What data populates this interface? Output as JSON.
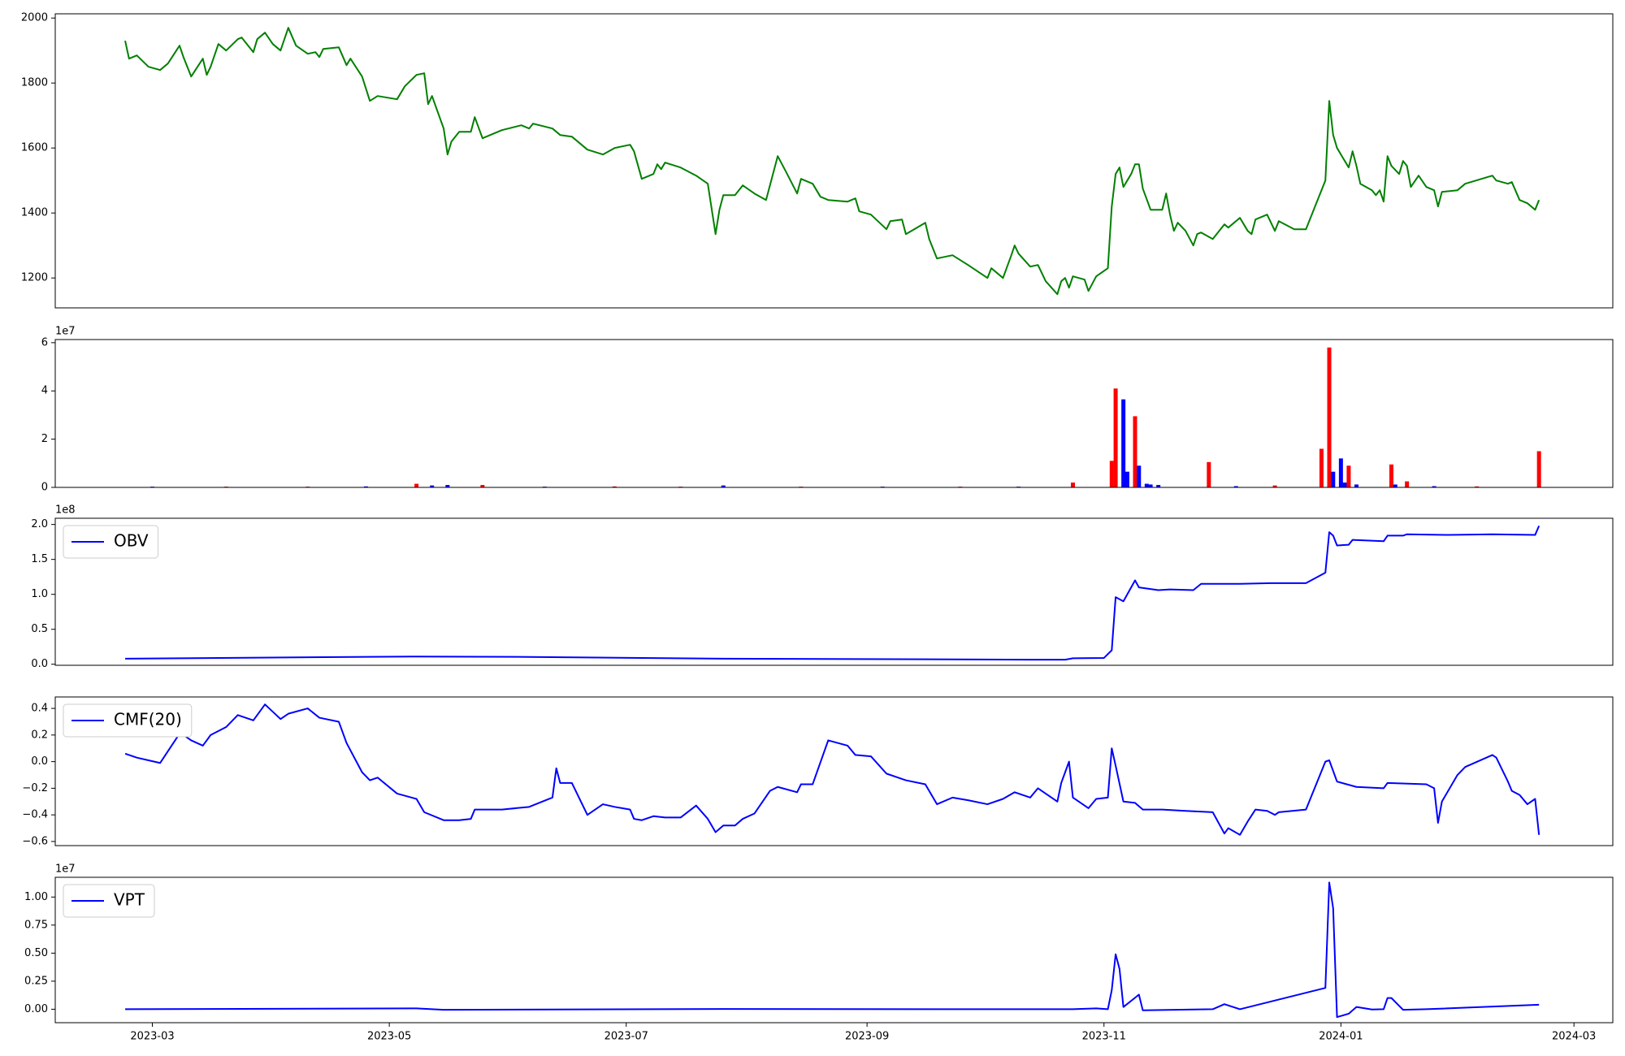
{
  "chart_data": [
    {
      "type": "line",
      "color": "#008000",
      "xlim": [
        "2023-02-04",
        "2024-03-11"
      ],
      "ylim": [
        1108,
        2013
      ],
      "yticks": [
        1200,
        1400,
        1600,
        1800,
        2000
      ],
      "x": [
        "2023-02-22",
        "2023-02-23",
        "2023-02-25",
        "2023-02-28",
        "2023-03-03",
        "2023-03-05",
        "2023-03-08",
        "2023-03-09",
        "2023-03-11",
        "2023-03-14",
        "2023-03-15",
        "2023-03-16",
        "2023-03-18",
        "2023-03-20",
        "2023-03-23",
        "2023-03-24",
        "2023-03-27",
        "2023-03-28",
        "2023-03-30",
        "2023-04-01",
        "2023-04-03",
        "2023-04-05",
        "2023-04-07",
        "2023-04-10",
        "2023-04-12",
        "2023-04-13",
        "2023-04-14",
        "2023-04-18",
        "2023-04-20",
        "2023-04-21",
        "2023-04-24",
        "2023-04-26",
        "2023-04-28",
        "2023-05-03",
        "2023-05-05",
        "2023-05-08",
        "2023-05-10",
        "2023-05-11",
        "2023-05-12",
        "2023-05-15",
        "2023-05-16",
        "2023-05-17",
        "2023-05-19",
        "2023-05-22",
        "2023-05-23",
        "2023-05-25",
        "2023-05-30",
        "2023-06-04",
        "2023-06-06",
        "2023-06-07",
        "2023-06-12",
        "2023-06-14",
        "2023-06-17",
        "2023-06-21",
        "2023-06-25",
        "2023-06-28",
        "2023-07-02",
        "2023-07-03",
        "2023-07-05",
        "2023-07-08",
        "2023-07-09",
        "2023-07-10",
        "2023-07-11",
        "2023-07-15",
        "2023-07-19",
        "2023-07-22",
        "2023-07-24",
        "2023-07-25",
        "2023-07-26",
        "2023-07-29",
        "2023-07-31",
        "2023-08-03",
        "2023-08-06",
        "2023-08-07",
        "2023-08-09",
        "2023-08-11",
        "2023-08-14",
        "2023-08-15",
        "2023-08-18",
        "2023-08-20",
        "2023-08-22",
        "2023-08-27",
        "2023-08-29",
        "2023-08-30",
        "2023-09-02",
        "2023-09-06",
        "2023-09-07",
        "2023-09-10",
        "2023-09-11",
        "2023-09-16",
        "2023-09-17",
        "2023-09-19",
        "2023-09-23",
        "2023-09-27",
        "2023-10-02",
        "2023-10-03",
        "2023-10-06",
        "2023-10-08",
        "2023-10-09",
        "2023-10-10",
        "2023-10-13",
        "2023-10-15",
        "2023-10-17",
        "2023-10-20",
        "2023-10-21",
        "2023-10-22",
        "2023-10-23",
        "2023-10-24",
        "2023-10-27",
        "2023-10-28",
        "2023-10-30",
        "2023-11-02",
        "2023-11-03",
        "2023-11-04",
        "2023-11-05",
        "2023-11-06",
        "2023-11-08",
        "2023-11-09",
        "2023-11-10",
        "2023-11-11",
        "2023-11-13",
        "2023-11-16",
        "2023-11-17",
        "2023-11-18",
        "2023-11-19",
        "2023-11-20",
        "2023-11-22",
        "2023-11-24",
        "2023-11-25",
        "2023-11-26",
        "2023-11-29",
        "2023-12-02",
        "2023-12-03",
        "2023-12-06",
        "2023-12-08",
        "2023-12-09",
        "2023-12-10",
        "2023-12-13",
        "2023-12-15",
        "2023-12-16",
        "2023-12-20",
        "2023-12-23",
        "2023-12-28",
        "2023-12-29",
        "2023-12-30",
        "2023-12-31",
        "2024-01-03",
        "2024-01-04",
        "2024-01-05",
        "2024-01-06",
        "2024-01-09",
        "2024-01-10",
        "2024-01-11",
        "2024-01-12",
        "2024-01-13",
        "2024-01-14",
        "2024-01-16",
        "2024-01-17",
        "2024-01-18",
        "2024-01-19",
        "2024-01-21",
        "2024-01-23",
        "2024-01-25",
        "2024-01-26",
        "2024-01-27",
        "2024-01-31",
        "2024-02-02",
        "2024-02-09",
        "2024-02-10",
        "2024-02-13",
        "2024-02-14",
        "2024-02-16",
        "2024-02-18",
        "2024-02-20",
        "2024-02-21"
      ],
      "values": [
        1930,
        1875,
        1885,
        1850,
        1840,
        1860,
        1915,
        1880,
        1820,
        1875,
        1825,
        1850,
        1920,
        1900,
        1935,
        1940,
        1895,
        1935,
        1955,
        1920,
        1900,
        1970,
        1915,
        1890,
        1895,
        1880,
        1905,
        1910,
        1855,
        1875,
        1820,
        1745,
        1760,
        1750,
        1790,
        1825,
        1830,
        1735,
        1760,
        1660,
        1580,
        1620,
        1650,
        1650,
        1695,
        1630,
        1655,
        1670,
        1660,
        1675,
        1660,
        1640,
        1635,
        1595,
        1580,
        1600,
        1610,
        1590,
        1505,
        1520,
        1550,
        1535,
        1555,
        1540,
        1515,
        1490,
        1335,
        1410,
        1455,
        1455,
        1485,
        1460,
        1440,
        1485,
        1575,
        1530,
        1460,
        1505,
        1490,
        1450,
        1440,
        1435,
        1445,
        1405,
        1395,
        1350,
        1375,
        1380,
        1335,
        1370,
        1320,
        1260,
        1270,
        1240,
        1200,
        1230,
        1200,
        1265,
        1300,
        1275,
        1235,
        1240,
        1190,
        1150,
        1190,
        1200,
        1170,
        1205,
        1195,
        1160,
        1205,
        1230,
        1420,
        1520,
        1540,
        1480,
        1520,
        1550,
        1550,
        1475,
        1410,
        1410,
        1460,
        1395,
        1345,
        1370,
        1345,
        1300,
        1335,
        1340,
        1320,
        1365,
        1355,
        1385,
        1345,
        1335,
        1380,
        1395,
        1345,
        1375,
        1350,
        1350,
        1500,
        1745,
        1640,
        1600,
        1540,
        1590,
        1545,
        1490,
        1470,
        1455,
        1470,
        1435,
        1575,
        1545,
        1520,
        1560,
        1545,
        1480,
        1515,
        1480,
        1470,
        1420,
        1465,
        1470,
        1490,
        1515,
        1500,
        1490,
        1495,
        1440,
        1430,
        1410,
        1440
      ]
    },
    {
      "type": "bar",
      "y_offset_label": "1e7",
      "xlim": [
        "2023-02-04",
        "2024-03-11"
      ],
      "ylim": [
        0,
        61300000
      ],
      "yticks": [
        0,
        {
          "value": 20000000,
          "label": "2"
        },
        {
          "value": 40000000,
          "label": "4"
        },
        {
          "value": 60000000,
          "label": "6"
        }
      ],
      "x": [
        "2023-03-01",
        "2023-03-20",
        "2023-04-10",
        "2023-04-25",
        "2023-05-08",
        "2023-05-12",
        "2023-05-16",
        "2023-05-25",
        "2023-06-10",
        "2023-06-28",
        "2023-07-15",
        "2023-07-26",
        "2023-08-15",
        "2023-09-05",
        "2023-09-25",
        "2023-10-10",
        "2023-10-24",
        "2023-11-03",
        "2023-11-04",
        "2023-11-06",
        "2023-11-07",
        "2023-11-09",
        "2023-11-10",
        "2023-11-12",
        "2023-11-13",
        "2023-11-15",
        "2023-11-28",
        "2023-12-05",
        "2023-12-15",
        "2023-12-27",
        "2023-12-29",
        "2023-12-30",
        "2024-01-01",
        "2024-01-02",
        "2024-01-03",
        "2024-01-05",
        "2024-01-14",
        "2024-01-15",
        "2024-01-18",
        "2024-01-25",
        "2024-02-05",
        "2024-02-21"
      ],
      "values": [
        300000,
        300000,
        300000,
        400000,
        1500000,
        800000,
        1000000,
        1000000,
        300000,
        400000,
        300000,
        800000,
        300000,
        300000,
        300000,
        300000,
        2000000,
        11000000,
        41000000,
        36500000,
        6500000,
        29500000,
        9000000,
        1500000,
        1200000,
        1000000,
        10500000,
        500000,
        800000,
        16000000,
        58000000,
        6500000,
        12000000,
        2000000,
        9000000,
        1200000,
        9500000,
        1200000,
        2500000,
        500000,
        400000,
        15000000
      ],
      "colors": [
        "#0000ff",
        "#ff0000",
        "#ff0000",
        "#0000ff",
        "#ff0000",
        "#0000ff",
        "#0000ff",
        "#ff0000",
        "#0000ff",
        "#ff0000",
        "#ff0000",
        "#0000ff",
        "#ff0000",
        "#0000ff",
        "#ff0000",
        "#0000ff",
        "#ff0000",
        "#ff0000",
        "#ff0000",
        "#0000ff",
        "#0000ff",
        "#ff0000",
        "#0000ff",
        "#0000ff",
        "#0000ff",
        "#0000ff",
        "#ff0000",
        "#0000ff",
        "#ff0000",
        "#ff0000",
        "#ff0000",
        "#0000ff",
        "#0000ff",
        "#0000ff",
        "#ff0000",
        "#0000ff",
        "#ff0000",
        "#0000ff",
        "#ff0000",
        "#0000ff",
        "#ff0000",
        "#ff0000"
      ]
    },
    {
      "type": "line",
      "y_offset_label": "1e8",
      "legend": "upper left",
      "xlim": [
        "2023-02-04",
        "2024-03-11"
      ],
      "ylim": [
        -1500000,
        208900000
      ],
      "yticks": [
        {
          "value": 0,
          "label": "0.0"
        },
        {
          "value": 50000000,
          "label": "0.5"
        },
        {
          "value": 100000000,
          "label": "1.0"
        },
        {
          "value": 150000000,
          "label": "1.5"
        },
        {
          "value": 200000000,
          "label": "2.0"
        }
      ],
      "x": [
        "2023-02-22",
        "2023-05-07",
        "2023-06-03",
        "2023-07-26",
        "2023-10-15",
        "2023-10-22",
        "2023-10-24",
        "2023-11-01",
        "2023-11-03",
        "2023-11-04",
        "2023-11-06",
        "2023-11-09",
        "2023-11-10",
        "2023-11-15",
        "2023-11-18",
        "2023-11-24",
        "2023-11-26",
        "2023-12-06",
        "2023-12-14",
        "2023-12-23",
        "2023-12-28",
        "2023-12-29",
        "2023-12-30",
        "2023-12-31",
        "2024-01-03",
        "2024-01-04",
        "2024-01-12",
        "2024-01-13",
        "2024-01-17",
        "2024-01-18",
        "2024-01-29",
        "2024-02-09",
        "2024-02-20",
        "2024-02-21"
      ],
      "series": [
        {
          "name": "OBV",
          "color": "#0000ff",
          "values": [
            8000000,
            11000000,
            10500000,
            8000000,
            6500000,
            6500000,
            8500000,
            9000000,
            20000000,
            96000000,
            90000000,
            120000000,
            110000000,
            106000000,
            107000000,
            106000000,
            115000000,
            115000000,
            116000000,
            116000000,
            131000000,
            189000000,
            184000000,
            170000000,
            171000000,
            178000000,
            176000000,
            184000000,
            184000000,
            186000000,
            185000000,
            186000000,
            185000000,
            198000000
          ]
        }
      ]
    },
    {
      "type": "line",
      "legend": "upper left",
      "xlim": [
        "2023-02-04",
        "2024-03-11"
      ],
      "ylim": [
        -0.631,
        0.486
      ],
      "yticks": [
        {
          "value": -0.6,
          "label": "−0.6"
        },
        {
          "value": -0.4,
          "label": "−0.4"
        },
        {
          "value": -0.2,
          "label": "−0.2"
        },
        {
          "value": 0,
          "label": "0.0"
        },
        0.2,
        0.4
      ],
      "x": [
        "2023-02-22",
        "2023-02-25",
        "2023-02-28",
        "2023-03-03",
        "2023-03-08",
        "2023-03-09",
        "2023-03-11",
        "2023-03-14",
        "2023-03-16",
        "2023-03-20",
        "2023-03-23",
        "2023-03-27",
        "2023-03-30",
        "2023-04-03",
        "2023-04-05",
        "2023-04-10",
        "2023-04-13",
        "2023-04-18",
        "2023-04-20",
        "2023-04-24",
        "2023-04-26",
        "2023-04-28",
        "2023-05-03",
        "2023-05-08",
        "2023-05-10",
        "2023-05-15",
        "2023-05-19",
        "2023-05-22",
        "2023-05-23",
        "2023-05-30",
        "2023-06-06",
        "2023-06-12",
        "2023-06-13",
        "2023-06-14",
        "2023-06-17",
        "2023-06-21",
        "2023-06-25",
        "2023-06-28",
        "2023-07-02",
        "2023-07-03",
        "2023-07-05",
        "2023-07-08",
        "2023-07-11",
        "2023-07-15",
        "2023-07-19",
        "2023-07-22",
        "2023-07-24",
        "2023-07-26",
        "2023-07-29",
        "2023-07-31",
        "2023-08-03",
        "2023-08-07",
        "2023-08-09",
        "2023-08-14",
        "2023-08-15",
        "2023-08-18",
        "2023-08-22",
        "2023-08-27",
        "2023-08-29",
        "2023-09-02",
        "2023-09-06",
        "2023-09-10",
        "2023-09-11",
        "2023-09-16",
        "2023-09-19",
        "2023-09-23",
        "2023-09-27",
        "2023-10-02",
        "2023-10-06",
        "2023-10-09",
        "2023-10-13",
        "2023-10-15",
        "2023-10-20",
        "2023-10-21",
        "2023-10-22",
        "2023-10-23",
        "2023-10-24",
        "2023-10-28",
        "2023-10-30",
        "2023-11-02",
        "2023-11-03",
        "2023-11-04",
        "2023-11-06",
        "2023-11-09",
        "2023-11-11",
        "2023-11-16",
        "2023-11-22",
        "2023-11-29",
        "2023-12-02",
        "2023-12-03",
        "2023-12-06",
        "2023-12-08",
        "2023-12-10",
        "2023-12-13",
        "2023-12-15",
        "2023-12-16",
        "2023-12-23",
        "2023-12-28",
        "2023-12-29",
        "2023-12-31",
        "2024-01-05",
        "2024-01-12",
        "2024-01-13",
        "2024-01-23",
        "2024-01-25",
        "2024-01-26",
        "2024-01-27",
        "2024-01-31",
        "2024-02-02",
        "2024-02-09",
        "2024-02-10",
        "2024-02-13",
        "2024-02-14",
        "2024-02-16",
        "2024-02-18",
        "2024-02-20",
        "2024-02-21"
      ],
      "series": [
        {
          "name": "CMF(20)",
          "color": "#0000ff",
          "values": [
            0.06,
            0.03,
            0.01,
            -0.01,
            0.21,
            0.2,
            0.16,
            0.12,
            0.2,
            0.26,
            0.35,
            0.31,
            0.43,
            0.32,
            0.36,
            0.4,
            0.33,
            0.3,
            0.14,
            -0.08,
            -0.14,
            -0.12,
            -0.24,
            -0.28,
            -0.38,
            -0.44,
            -0.44,
            -0.43,
            -0.36,
            -0.36,
            -0.34,
            -0.27,
            -0.05,
            -0.16,
            -0.16,
            -0.4,
            -0.32,
            -0.34,
            -0.36,
            -0.43,
            -0.44,
            -0.41,
            -0.42,
            -0.42,
            -0.33,
            -0.43,
            -0.53,
            -0.48,
            -0.48,
            -0.43,
            -0.39,
            -0.22,
            -0.19,
            -0.23,
            -0.17,
            -0.17,
            0.16,
            0.12,
            0.05,
            0.04,
            -0.09,
            -0.13,
            -0.14,
            -0.17,
            -0.32,
            -0.27,
            -0.29,
            -0.32,
            -0.28,
            -0.23,
            -0.27,
            -0.2,
            -0.3,
            -0.16,
            -0.08,
            0,
            -0.27,
            -0.35,
            -0.28,
            -0.27,
            0.1,
            -0.03,
            -0.3,
            -0.31,
            -0.36,
            -0.36,
            -0.37,
            -0.38,
            -0.54,
            -0.5,
            -0.55,
            -0.45,
            -0.36,
            -0.37,
            -0.4,
            -0.38,
            -0.36,
            0,
            0.01,
            -0.15,
            -0.19,
            -0.2,
            -0.16,
            -0.17,
            -0.2,
            -0.46,
            -0.3,
            -0.1,
            -0.04,
            0.05,
            0.03,
            -0.15,
            -0.22,
            -0.25,
            -0.32,
            -0.28,
            -0.55
          ]
        }
      ]
    },
    {
      "type": "line",
      "y_offset_label": "1e7",
      "legend": "upper left",
      "xlim": [
        "2023-02-04",
        "2024-03-11"
      ],
      "ylim": [
        -1200000,
        11760000
      ],
      "yticks": [
        {
          "value": 0,
          "label": "0.00"
        },
        {
          "value": 2500000,
          "label": "0.25"
        },
        {
          "value": 5000000,
          "label": "0.50"
        },
        {
          "value": 7500000,
          "label": "0.75"
        },
        {
          "value": 10000000,
          "label": "1.00"
        }
      ],
      "xticks": [
        {
          "value": "2023-03-01",
          "label": "2023-03"
        },
        {
          "value": "2023-05-01",
          "label": "2023-05"
        },
        {
          "value": "2023-07-01",
          "label": "2023-07"
        },
        {
          "value": "2023-09-01",
          "label": "2023-09"
        },
        {
          "value": "2023-11-01",
          "label": "2023-11"
        },
        {
          "value": "2024-01-01",
          "label": "2024-01"
        },
        {
          "value": "2024-03-01",
          "label": "2024-03"
        }
      ],
      "x": [
        "2023-02-22",
        "2023-05-08",
        "2023-05-15",
        "2023-07-26",
        "2023-10-24",
        "2023-10-30",
        "2023-11-02",
        "2023-11-03",
        "2023-11-04",
        "2023-11-05",
        "2023-11-06",
        "2023-11-10",
        "2023-11-11",
        "2023-11-29",
        "2023-12-02",
        "2023-12-06",
        "2023-12-28",
        "2023-12-29",
        "2023-12-30",
        "2023-12-31",
        "2024-01-03",
        "2024-01-05",
        "2024-01-09",
        "2024-01-12",
        "2024-01-13",
        "2024-01-14",
        "2024-01-16",
        "2024-01-17",
        "2024-01-23",
        "2024-02-21"
      ],
      "series": [
        {
          "name": "VPT",
          "color": "#0000ff",
          "values": [
            0,
            80000,
            -50000,
            20000,
            0,
            80000,
            0,
            1700000,
            4900000,
            3600000,
            200000,
            1300000,
            -100000,
            0,
            450000,
            0,
            1900000,
            11300000,
            9000000,
            -700000,
            -400000,
            200000,
            -20000,
            0,
            1000000,
            1000000,
            300000,
            -50000,
            0,
            400000
          ]
        }
      ]
    }
  ]
}
